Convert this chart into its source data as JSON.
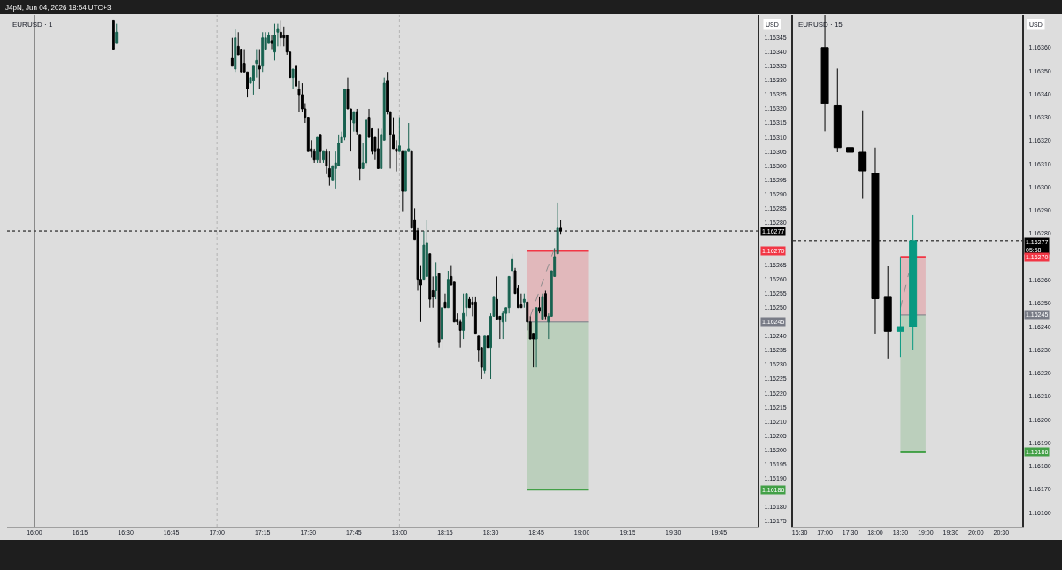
{
  "chart_data": [
    {
      "type": "candlestick",
      "title": "EURUSD · 1",
      "ylabel": "USD",
      "annotations": [
        "J4pN, Jun 04, 2026 18:54 UTC+3",
        {
          "text": "1.16270",
          "y": 1.1627
        },
        {
          "text": "1.16245",
          "y": 1.16245
        },
        {
          "text": "1.16186",
          "y": 1.16186
        }
      ],
      "xlim": [
        "2026-06-04T15:51",
        "2026-06-04T19:58"
      ],
      "xticks": [
        {
          "value": "2026-06-04T16:00",
          "label": "16:00"
        },
        {
          "value": "2026-06-04T16:15",
          "label": "16:15"
        },
        {
          "value": "2026-06-04T16:30",
          "label": "16:30"
        },
        {
          "value": "2026-06-04T16:45",
          "label": "16:45"
        },
        {
          "value": "2026-06-04T17:00",
          "label": "17:00"
        },
        {
          "value": "2026-06-04T17:15",
          "label": "17:15"
        },
        {
          "value": "2026-06-04T17:30",
          "label": "17:30"
        },
        {
          "value": "2026-06-04T17:45",
          "label": "17:45"
        },
        {
          "value": "2026-06-04T18:00",
          "label": "18:00"
        },
        {
          "value": "2026-06-04T18:15",
          "label": "18:15"
        },
        {
          "value": "2026-06-04T18:30",
          "label": "18:30"
        },
        {
          "value": "2026-06-04T18:45",
          "label": "18:45"
        },
        {
          "value": "2026-06-04T19:00",
          "label": "19:00"
        },
        {
          "value": "2026-06-04T19:15",
          "label": "19:15"
        },
        {
          "value": "2026-06-04T19:30",
          "label": "19:30"
        },
        {
          "value": "2026-06-04T19:45",
          "label": "19:45"
        }
      ],
      "ylim": [
        1.16173,
        1.16353
      ],
      "yticks": [
        {
          "value": 1.16175,
          "label": "1.16175"
        },
        {
          "value": 1.1618,
          "label": "1.16180"
        },
        {
          "value": 1.1619,
          "label": "1.16190"
        },
        {
          "value": 1.16195,
          "label": "1.16195"
        },
        {
          "value": 1.162,
          "label": "1.16200"
        },
        {
          "value": 1.16205,
          "label": "1.16205"
        },
        {
          "value": 1.1621,
          "label": "1.16210"
        },
        {
          "value": 1.16215,
          "label": "1.16215"
        },
        {
          "value": 1.1622,
          "label": "1.16220"
        },
        {
          "value": 1.16225,
          "label": "1.16225"
        },
        {
          "value": 1.1623,
          "label": "1.16230"
        },
        {
          "value": 1.16235,
          "label": "1.16235"
        },
        {
          "value": 1.1624,
          "label": "1.16240"
        },
        {
          "value": 1.1625,
          "label": "1.16250"
        },
        {
          "value": 1.16255,
          "label": "1.16255"
        },
        {
          "value": 1.1626,
          "label": "1.16260"
        },
        {
          "value": 1.16265,
          "label": "1.16265"
        },
        {
          "value": 1.1628,
          "label": "1.16280"
        },
        {
          "value": 1.16285,
          "label": "1.16285"
        },
        {
          "value": 1.1629,
          "label": "1.16290"
        },
        {
          "value": 1.16295,
          "label": "1.16295"
        },
        {
          "value": 1.163,
          "label": "1.16300"
        },
        {
          "value": 1.16305,
          "label": "1.16305"
        },
        {
          "value": 1.1631,
          "label": "1.16310"
        },
        {
          "value": 1.16315,
          "label": "1.16315"
        },
        {
          "value": 1.1632,
          "label": "1.16320"
        },
        {
          "value": 1.16325,
          "label": "1.16325"
        },
        {
          "value": 1.1633,
          "label": "1.16330"
        },
        {
          "value": 1.16335,
          "label": "1.16335"
        },
        {
          "value": 1.1634,
          "label": "1.16340"
        },
        {
          "value": 1.16345,
          "label": "1.16345"
        }
      ],
      "x": [
        "2026-06-04T16:26",
        "2026-06-04T16:27",
        "2026-06-04T17:05",
        "2026-06-04T17:06",
        "2026-06-04T17:07",
        "2026-06-04T17:08",
        "2026-06-04T17:09",
        "2026-06-04T17:10",
        "2026-06-04T17:11",
        "2026-06-04T17:12",
        "2026-06-04T17:13",
        "2026-06-04T17:14",
        "2026-06-04T17:15",
        "2026-06-04T17:16",
        "2026-06-04T17:17",
        "2026-06-04T17:18",
        "2026-06-04T17:19",
        "2026-06-04T17:20",
        "2026-06-04T17:21",
        "2026-06-04T17:22",
        "2026-06-04T17:23",
        "2026-06-04T17:24",
        "2026-06-04T17:25",
        "2026-06-04T17:26",
        "2026-06-04T17:27",
        "2026-06-04T17:28",
        "2026-06-04T17:29",
        "2026-06-04T17:30",
        "2026-06-04T17:31",
        "2026-06-04T17:32",
        "2026-06-04T17:33",
        "2026-06-04T17:34",
        "2026-06-04T17:35",
        "2026-06-04T17:36",
        "2026-06-04T17:37",
        "2026-06-04T17:38",
        "2026-06-04T17:39",
        "2026-06-04T17:40",
        "2026-06-04T17:41",
        "2026-06-04T17:42",
        "2026-06-04T17:43",
        "2026-06-04T17:44",
        "2026-06-04T17:45",
        "2026-06-04T17:46",
        "2026-06-04T17:47",
        "2026-06-04T17:48",
        "2026-06-04T17:49",
        "2026-06-04T17:50",
        "2026-06-04T17:51",
        "2026-06-04T17:52",
        "2026-06-04T17:53",
        "2026-06-04T17:54",
        "2026-06-04T17:55",
        "2026-06-04T17:56",
        "2026-06-04T17:57",
        "2026-06-04T17:58",
        "2026-06-04T17:59",
        "2026-06-04T18:00",
        "2026-06-04T18:01",
        "2026-06-04T18:02",
        "2026-06-04T18:03",
        "2026-06-04T18:04",
        "2026-06-04T18:05",
        "2026-06-04T18:06",
        "2026-06-04T18:07",
        "2026-06-04T18:08",
        "2026-06-04T18:09",
        "2026-06-04T18:10",
        "2026-06-04T18:11",
        "2026-06-04T18:12",
        "2026-06-04T18:13",
        "2026-06-04T18:14",
        "2026-06-04T18:15",
        "2026-06-04T18:16",
        "2026-06-04T18:17",
        "2026-06-04T18:18",
        "2026-06-04T18:19",
        "2026-06-04T18:20",
        "2026-06-04T18:21",
        "2026-06-04T18:22",
        "2026-06-04T18:23",
        "2026-06-04T18:24",
        "2026-06-04T18:25",
        "2026-06-04T18:26",
        "2026-06-04T18:27",
        "2026-06-04T18:28",
        "2026-06-04T18:29",
        "2026-06-04T18:30",
        "2026-06-04T18:31",
        "2026-06-04T18:32",
        "2026-06-04T18:33",
        "2026-06-04T18:34",
        "2026-06-04T18:35",
        "2026-06-04T18:36",
        "2026-06-04T18:37",
        "2026-06-04T18:38",
        "2026-06-04T18:39",
        "2026-06-04T18:40",
        "2026-06-04T18:41",
        "2026-06-04T18:42",
        "2026-06-04T18:43",
        "2026-06-04T18:44",
        "2026-06-04T18:45",
        "2026-06-04T18:46",
        "2026-06-04T18:47",
        "2026-06-04T18:48",
        "2026-06-04T18:49",
        "2026-06-04T18:50",
        "2026-06-04T18:51",
        "2026-06-04T18:52",
        "2026-06-04T18:53"
      ],
      "ohlc": [
        [
          1.16351,
          1.16351,
          1.16341,
          1.16341
        ],
        [
          1.16343,
          1.1635,
          1.16343,
          1.16347
        ],
        [
          1.16338,
          1.16345,
          1.16335,
          1.16335
        ],
        [
          1.16334,
          1.16348,
          1.16333,
          1.16345
        ],
        [
          1.16342,
          1.16347,
          1.16339,
          1.16339
        ],
        [
          1.16341,
          1.16341,
          1.16333,
          1.16333
        ],
        [
          1.16336,
          1.16341,
          1.16333,
          1.16333
        ],
        [
          1.16333,
          1.16333,
          1.16324,
          1.16327
        ],
        [
          1.16329,
          1.16331,
          1.16329,
          1.16331
        ],
        [
          1.1633,
          1.16335,
          1.16325,
          1.16335
        ],
        [
          1.16336,
          1.16341,
          1.16331,
          1.16337
        ],
        [
          1.16335,
          1.16341,
          1.16327,
          1.16334
        ],
        [
          1.16335,
          1.16347,
          1.16333,
          1.16345
        ],
        [
          1.16341,
          1.16347,
          1.16341,
          1.16345
        ],
        [
          1.16343,
          1.16347,
          1.16343,
          1.16346
        ],
        [
          1.16344,
          1.16346,
          1.16341,
          1.16343
        ],
        [
          1.1634,
          1.1635,
          1.16337,
          1.16346
        ],
        [
          1.16347,
          1.1635,
          1.16342,
          1.16348
        ],
        [
          1.16347,
          1.16351,
          1.16342,
          1.16345
        ],
        [
          1.16346,
          1.16349,
          1.16342,
          1.16345
        ],
        [
          1.16346,
          1.16346,
          1.16339,
          1.1634
        ],
        [
          1.1634,
          1.1634,
          1.16331,
          1.16331
        ],
        [
          1.16331,
          1.16334,
          1.16327,
          1.16334
        ],
        [
          1.16335,
          1.16335,
          1.16327,
          1.16328
        ],
        [
          1.16327,
          1.1633,
          1.16319,
          1.16325
        ],
        [
          1.16325,
          1.16329,
          1.16319,
          1.1632
        ],
        [
          1.1632,
          1.16322,
          1.16315,
          1.16317
        ],
        [
          1.16317,
          1.16317,
          1.16305,
          1.16305
        ],
        [
          1.16306,
          1.16309,
          1.16303,
          1.16305
        ],
        [
          1.16305,
          1.16306,
          1.16301,
          1.16302
        ],
        [
          1.16302,
          1.1631,
          1.16301,
          1.1631
        ],
        [
          1.16311,
          1.16311,
          1.16301,
          1.16305
        ],
        [
          1.16302,
          1.16305,
          1.16301,
          1.16305
        ],
        [
          1.16305,
          1.16306,
          1.16297,
          1.163
        ],
        [
          1.16299,
          1.16305,
          1.16293,
          1.16296
        ],
        [
          1.16295,
          1.163,
          1.16295,
          1.163
        ],
        [
          1.16299,
          1.16305,
          1.16292,
          1.16301
        ],
        [
          1.163,
          1.16311,
          1.163,
          1.16308
        ],
        [
          1.16308,
          1.16312,
          1.16308,
          1.1631
        ],
        [
          1.1631,
          1.16327,
          1.16309,
          1.16327
        ],
        [
          1.16327,
          1.16331,
          1.1632,
          1.1632
        ],
        [
          1.1632,
          1.1632,
          1.16305,
          1.16316
        ],
        [
          1.16315,
          1.16319,
          1.16312,
          1.16319
        ],
        [
          1.16319,
          1.1632,
          1.16311,
          1.16312
        ],
        [
          1.16311,
          1.16311,
          1.16295,
          1.16299
        ],
        [
          1.16299,
          1.16308,
          1.16299,
          1.16301
        ],
        [
          1.16301,
          1.16316,
          1.163,
          1.16316
        ],
        [
          1.16317,
          1.1632,
          1.1631,
          1.1631
        ],
        [
          1.16313,
          1.16313,
          1.16304,
          1.16305
        ],
        [
          1.1631,
          1.1631,
          1.16302,
          1.16305
        ],
        [
          1.16306,
          1.16313,
          1.16299,
          1.16299
        ],
        [
          1.16299,
          1.16313,
          1.16299,
          1.16311
        ],
        [
          1.16309,
          1.16331,
          1.16309,
          1.16329
        ],
        [
          1.1633,
          1.16333,
          1.16318,
          1.16319
        ],
        [
          1.16319,
          1.16319,
          1.16299,
          1.16311
        ],
        [
          1.16311,
          1.16317,
          1.16306,
          1.16306
        ],
        [
          1.16306,
          1.16309,
          1.16298,
          1.16305
        ],
        [
          1.16305,
          1.16317,
          1.16305,
          1.16307
        ],
        [
          1.16305,
          1.16305,
          1.16284,
          1.16291
        ],
        [
          1.16291,
          1.16305,
          1.16291,
          1.16305
        ],
        [
          1.16305,
          1.16315,
          1.16305,
          1.16306
        ],
        [
          1.16305,
          1.16305,
          1.16278,
          1.16278
        ],
        [
          1.16281,
          1.16285,
          1.16274,
          1.16274
        ],
        [
          1.16277,
          1.16278,
          1.16256,
          1.1626
        ],
        [
          1.1626,
          1.16265,
          1.16245,
          1.16258
        ],
        [
          1.1626,
          1.16277,
          1.1626,
          1.16272
        ],
        [
          1.16261,
          1.16281,
          1.16261,
          1.16273
        ],
        [
          1.16269,
          1.16269,
          1.1625,
          1.16253
        ],
        [
          1.16256,
          1.16261,
          1.1625,
          1.16254
        ],
        [
          1.16256,
          1.16266,
          1.16253,
          1.16261
        ],
        [
          1.16262,
          1.16262,
          1.16236,
          1.16238
        ],
        [
          1.16239,
          1.1625,
          1.16235,
          1.1625
        ],
        [
          1.16252,
          1.16255,
          1.1625,
          1.1625
        ],
        [
          1.1625,
          1.16263,
          1.1625,
          1.1626
        ],
        [
          1.16261,
          1.16265,
          1.16258,
          1.16258
        ],
        [
          1.16259,
          1.16259,
          1.16245,
          1.16245
        ],
        [
          1.16246,
          1.16248,
          1.16244,
          1.16245
        ],
        [
          1.16245,
          1.16246,
          1.16236,
          1.16242
        ],
        [
          1.16242,
          1.16255,
          1.16239,
          1.16248
        ],
        [
          1.1625,
          1.16255,
          1.16247,
          1.16255
        ],
        [
          1.16253,
          1.16254,
          1.1625,
          1.1625
        ],
        [
          1.16252,
          1.16254,
          1.16247,
          1.16251
        ],
        [
          1.16252,
          1.16254,
          1.16241,
          1.16241
        ],
        [
          1.1624,
          1.1624,
          1.16231,
          1.16235
        ],
        [
          1.16236,
          1.16236,
          1.16225,
          1.16229
        ],
        [
          1.16228,
          1.1624,
          1.16227,
          1.1624
        ],
        [
          1.1624,
          1.1624,
          1.16236,
          1.16236
        ],
        [
          1.16236,
          1.16248,
          1.16225,
          1.16247
        ],
        [
          1.16247,
          1.16254,
          1.16247,
          1.16254
        ],
        [
          1.16253,
          1.16261,
          1.16246,
          1.16246
        ],
        [
          1.16247,
          1.16247,
          1.16239,
          1.16246
        ],
        [
          1.16245,
          1.16249,
          1.16239,
          1.16248
        ],
        [
          1.16248,
          1.1625,
          1.16245,
          1.1625
        ],
        [
          1.1625,
          1.16261,
          1.16248,
          1.16261
        ],
        [
          1.16263,
          1.16269,
          1.1626,
          1.16267
        ],
        [
          1.16263,
          1.16264,
          1.16255,
          1.16255
        ],
        [
          1.16257,
          1.16258,
          1.1625,
          1.1625
        ],
        [
          1.16251,
          1.16255,
          1.1625,
          1.1625
        ],
        [
          1.16252,
          1.16255,
          1.1625,
          1.16253
        ],
        [
          1.16252,
          1.16252,
          1.16242,
          1.16245
        ],
        [
          1.16245,
          1.16247,
          1.16239,
          1.16239
        ],
        [
          1.16241,
          1.16241,
          1.16229,
          1.16239
        ],
        [
          1.16239,
          1.1625,
          1.16229,
          1.1625
        ],
        [
          1.1625,
          1.16254,
          1.16248,
          1.16249
        ],
        [
          1.16246,
          1.16255,
          1.16246,
          1.16254
        ],
        [
          1.16255,
          1.16256,
          1.16246,
          1.16247
        ],
        [
          1.16245,
          1.16248,
          1.16239,
          1.16247
        ],
        [
          1.16247,
          1.16263,
          1.16247,
          1.16263
        ],
        [
          1.16261,
          1.16271,
          1.16261,
          1.16268
        ],
        [
          1.16269,
          1.16287,
          1.16269,
          1.16278
        ],
        [
          1.16278,
          1.16281,
          1.16276,
          1.16277
        ]
      ],
      "colors": [
        "#000000",
        "#17614f",
        "#000000",
        "#17614f",
        "#000000",
        "#000000",
        "#000000",
        "#000000",
        "#17614f",
        "#17614f",
        "#17614f",
        "#000000",
        "#17614f",
        "#17614f",
        "#17614f",
        "#000000",
        "#17614f",
        "#17614f",
        "#000000",
        "#000000",
        "#000000",
        "#000000",
        "#17614f",
        "#000000",
        "#000000",
        "#000000",
        "#000000",
        "#000000",
        "#000000",
        "#000000",
        "#17614f",
        "#000000",
        "#17614f",
        "#000000",
        "#000000",
        "#17614f",
        "#17614f",
        "#17614f",
        "#17614f",
        "#17614f",
        "#000000",
        "#000000",
        "#17614f",
        "#000000",
        "#000000",
        "#17614f",
        "#17614f",
        "#000000",
        "#000000",
        "#000000",
        "#000000",
        "#17614f",
        "#17614f",
        "#000000",
        "#000000",
        "#000000",
        "#000000",
        "#17614f",
        "#000000",
        "#17614f",
        "#17614f",
        "#000000",
        "#000000",
        "#000000",
        "#000000",
        "#17614f",
        "#17614f",
        "#000000",
        "#000000",
        "#17614f",
        "#000000",
        "#17614f",
        "#000000",
        "#17614f",
        "#000000",
        "#000000",
        "#000000",
        "#000000",
        "#17614f",
        "#17614f",
        "#000000",
        "#000000",
        "#000000",
        "#000000",
        "#000000",
        "#17614f",
        "#000000",
        "#17614f",
        "#17614f",
        "#000000",
        "#000000",
        "#17614f",
        "#17614f",
        "#17614f",
        "#17614f",
        "#000000",
        "#000000",
        "#000000",
        "#17614f",
        "#000000",
        "#000000",
        "#000000",
        "#17614f",
        "#000000",
        "#17614f",
        "#000000",
        "#17614f",
        "#17614f",
        "#17614f",
        "#17614f",
        "#000000"
      ],
      "series": [
        {
          "type": "line",
          "color": "#f23645",
          "x": [
            "2026-06-04T18:42",
            "2026-06-04T19:02"
          ],
          "values": [
            1.1627,
            1.1627
          ],
          "lower": [
            1.16245,
            1.16245
          ],
          "upper": [
            1.1627,
            1.1627
          ]
        },
        {
          "type": "line",
          "color": "#43a047",
          "x": [
            "2026-06-04T18:42",
            "2026-06-04T19:02"
          ],
          "values": [
            1.16186,
            1.16186
          ],
          "lower": [
            1.16186,
            1.16186
          ],
          "upper": [
            1.16245,
            1.16245
          ]
        },
        {
          "type": "line",
          "color": "#787b86",
          "x": [
            "2026-06-04T18:42",
            "2026-06-04T19:02"
          ],
          "values": [
            1.16245,
            1.16245
          ]
        },
        {
          "type": "line",
          "color": "#8c8c8c",
          "line_style": "dashed",
          "x": [
            "2026-06-04T18:43",
            "2026-06-04T18:51"
          ],
          "values": [
            1.16247,
            1.16271
          ]
        }
      ],
      "ref_lines": [
        {
          "axis": "y",
          "value": 1.16277,
          "label": "1.16277",
          "color": "#000000",
          "line_style": "dotted"
        },
        {
          "axis": "x",
          "value": "2026-06-04T16:00",
          "color": "#4a4a4a",
          "line_style": "solid"
        },
        {
          "axis": "x",
          "value": "2026-06-04T17:00",
          "color": "#b4b4b4",
          "line_style": "dotted"
        },
        {
          "axis": "x",
          "value": "2026-06-04T18:00",
          "color": "#b4b4b4",
          "line_style": "dotted"
        }
      ]
    },
    {
      "type": "candlestick",
      "title": "EURUSD · 15",
      "ylabel": "USD",
      "annotations": [
        {
          "text": "1.16270",
          "y": 1.1627
        },
        {
          "text": "1.16245",
          "y": 1.16245
        },
        {
          "text": "1.16186",
          "y": 1.16186
        }
      ],
      "xlim": [
        "2026-06-04T16:22",
        "2026-06-04T20:55"
      ],
      "xticks": [
        {
          "value": "2026-06-04T16:30",
          "label": "16:30"
        },
        {
          "value": "2026-06-04T17:00",
          "label": "17:00"
        },
        {
          "value": "2026-06-04T17:30",
          "label": "17:30"
        },
        {
          "value": "2026-06-04T18:00",
          "label": "18:00"
        },
        {
          "value": "2026-06-04T18:30",
          "label": "18:30"
        },
        {
          "value": "2026-06-04T19:00",
          "label": "19:00"
        },
        {
          "value": "2026-06-04T19:30",
          "label": "19:30"
        },
        {
          "value": "2026-06-04T20:00",
          "label": "20:00"
        },
        {
          "value": "2026-06-04T20:30",
          "label": "20:30"
        }
      ],
      "ylim": [
        1.16154,
        1.16374
      ],
      "yticks": [
        {
          "value": 1.1616,
          "label": "1.16160"
        },
        {
          "value": 1.1617,
          "label": "1.16170"
        },
        {
          "value": 1.1618,
          "label": "1.16180"
        },
        {
          "value": 1.1619,
          "label": "1.16190"
        },
        {
          "value": 1.162,
          "label": "1.16200"
        },
        {
          "value": 1.1621,
          "label": "1.16210"
        },
        {
          "value": 1.1622,
          "label": "1.16220"
        },
        {
          "value": 1.1623,
          "label": "1.16230"
        },
        {
          "value": 1.1624,
          "label": "1.16240"
        },
        {
          "value": 1.1625,
          "label": "1.16250"
        },
        {
          "value": 1.1626,
          "label": "1.16260"
        },
        {
          "value": 1.1628,
          "label": "1.16280"
        },
        {
          "value": 1.1629,
          "label": "1.16290"
        },
        {
          "value": 1.163,
          "label": "1.16300"
        },
        {
          "value": 1.1631,
          "label": "1.16310"
        },
        {
          "value": 1.1632,
          "label": "1.16320"
        },
        {
          "value": 1.1633,
          "label": "1.16330"
        },
        {
          "value": 1.1634,
          "label": "1.16340"
        },
        {
          "value": 1.1635,
          "label": "1.16350"
        },
        {
          "value": 1.1636,
          "label": "1.16360"
        }
      ],
      "x": [
        "2026-06-04T17:00",
        "2026-06-04T17:15",
        "2026-06-04T17:30",
        "2026-06-04T17:45",
        "2026-06-04T18:00",
        "2026-06-04T18:15",
        "2026-06-04T18:30",
        "2026-06-04T18:45"
      ],
      "ohlc": [
        [
          1.1636,
          1.16374,
          1.16324,
          1.16336
        ],
        [
          1.16335,
          1.16351,
          1.16315,
          1.16317
        ],
        [
          1.16317,
          1.16331,
          1.16293,
          1.16315
        ],
        [
          1.16315,
          1.16333,
          1.16295,
          1.16307
        ],
        [
          1.16306,
          1.16317,
          1.16237,
          1.16252
        ],
        [
          1.16253,
          1.16266,
          1.16226,
          1.16238
        ],
        [
          1.16238,
          1.1627,
          1.16227,
          1.1624
        ],
        [
          1.1624,
          1.16288,
          1.1623,
          1.16277
        ]
      ],
      "colors": [
        "#000000",
        "#000000",
        "#000000",
        "#000000",
        "#000000",
        "#000000",
        "#089981",
        "#089981"
      ],
      "series": [
        {
          "type": "line",
          "color": "#f23645",
          "x": [
            "2026-06-04T18:30",
            "2026-06-04T19:00"
          ],
          "values": [
            1.1627,
            1.1627
          ],
          "lower": [
            1.16245,
            1.16245
          ],
          "upper": [
            1.1627,
            1.1627
          ]
        },
        {
          "type": "line",
          "color": "#43a047",
          "x": [
            "2026-06-04T18:30",
            "2026-06-04T19:00"
          ],
          "values": [
            1.16186,
            1.16186
          ],
          "lower": [
            1.16186,
            1.16186
          ],
          "upper": [
            1.16245,
            1.16245
          ]
        },
        {
          "type": "line",
          "color": "#787b86",
          "x": [
            "2026-06-04T18:30",
            "2026-06-04T19:00"
          ],
          "values": [
            1.16245,
            1.16245
          ]
        },
        {
          "type": "line",
          "color": "#8c8c8c",
          "line_style": "dashed",
          "x": [
            "2026-06-04T18:30",
            "2026-06-04T18:40"
          ],
          "values": [
            1.16248,
            1.16263
          ]
        }
      ],
      "ref_lines": [
        {
          "axis": "y",
          "value": 1.16277,
          "label": "1.16277\n05:58",
          "color": "#000000",
          "line_style": "dotted"
        }
      ]
    }
  ]
}
